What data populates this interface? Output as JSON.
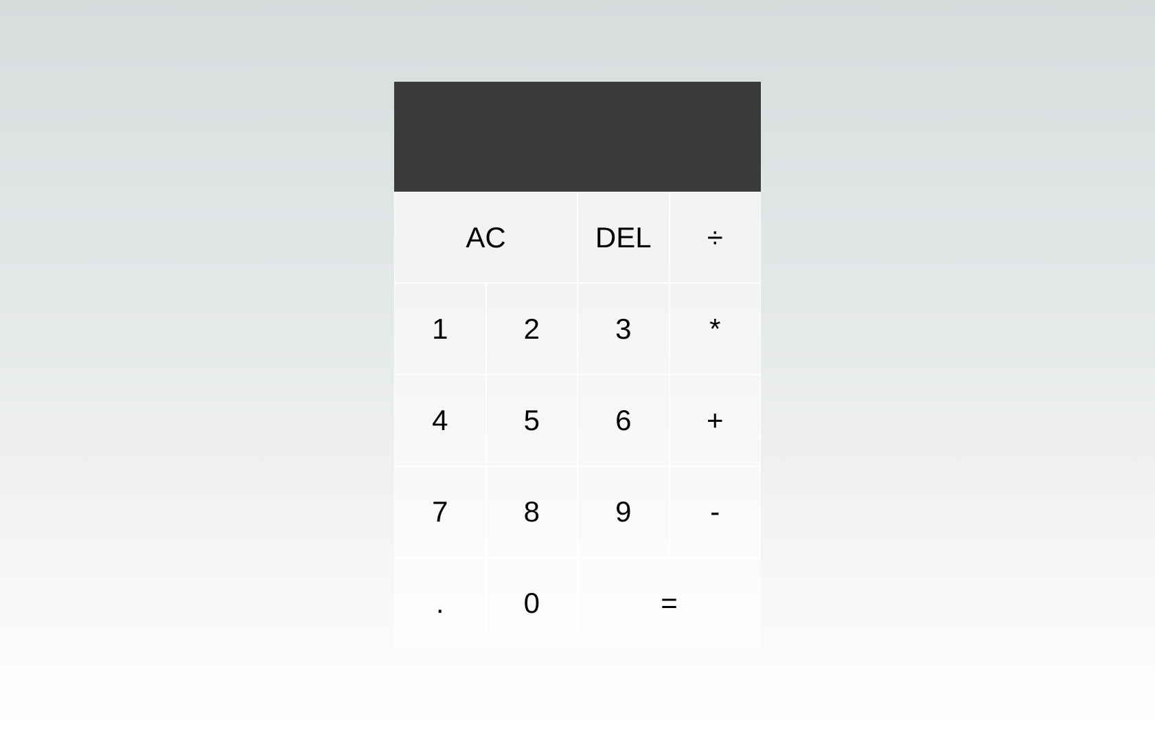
{
  "display": {
    "previous_operand": "",
    "current_operand": ""
  },
  "keys": {
    "all_clear": "AC",
    "delete": "DEL",
    "divide": "÷",
    "one": "1",
    "two": "2",
    "three": "3",
    "multiply": "*",
    "four": "4",
    "five": "5",
    "six": "6",
    "add": "+",
    "seven": "7",
    "eight": "8",
    "nine": "9",
    "subtract": "-",
    "decimal": ".",
    "zero": "0",
    "equals": "="
  },
  "colors": {
    "display_background": "#393a39",
    "key_text": "#000000"
  }
}
